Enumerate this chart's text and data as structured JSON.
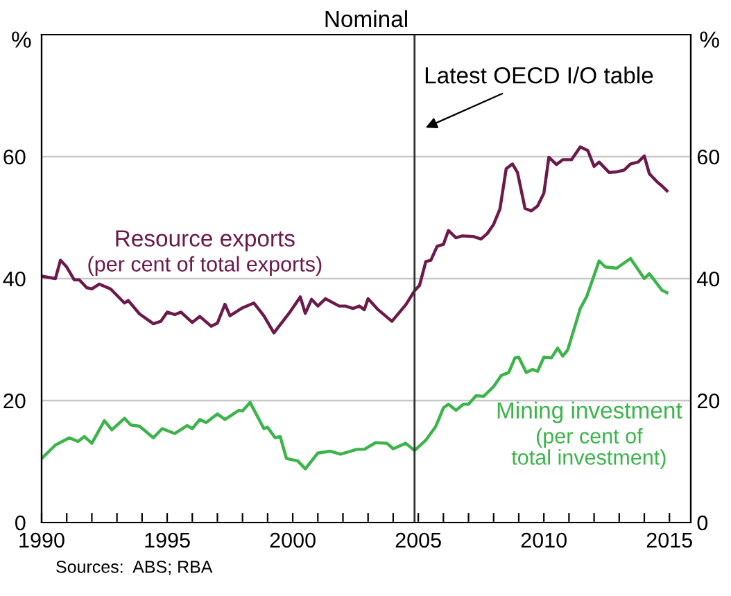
{
  "chart_data": {
    "type": "line",
    "title": "Nominal",
    "ylabel": "%",
    "y2label": "%",
    "xlim": [
      1990,
      2015.85
    ],
    "ylim": [
      0,
      80
    ],
    "y2lim": [
      0,
      80
    ],
    "xticks": [
      1990,
      {
        "value": 1991,
        "label": null
      },
      {
        "value": 1992,
        "label": null
      },
      {
        "value": 1993,
        "label": null
      },
      {
        "value": 1994,
        "label": null
      },
      1995,
      {
        "value": 1996,
        "label": null
      },
      {
        "value": 1997,
        "label": null
      },
      {
        "value": 1998,
        "label": null
      },
      {
        "value": 1999,
        "label": null
      },
      2000,
      {
        "value": 2001,
        "label": null
      },
      {
        "value": 2002,
        "label": null
      },
      {
        "value": 2003,
        "label": null
      },
      {
        "value": 2004,
        "label": null
      },
      2005,
      {
        "value": 2006,
        "label": null
      },
      {
        "value": 2007,
        "label": null
      },
      {
        "value": 2008,
        "label": null
      },
      {
        "value": 2009,
        "label": null
      },
      2010,
      {
        "value": 2011,
        "label": null
      },
      {
        "value": 2012,
        "label": null
      },
      {
        "value": 2013,
        "label": null
      },
      {
        "value": 2014,
        "label": null
      },
      2015
    ],
    "yticks": [
      0,
      20,
      40,
      60
    ],
    "y2ticks": [
      0,
      20,
      40,
      60
    ],
    "grid": "y",
    "legend": false,
    "series": [
      {
        "name": "Resource exports\n(per cent of total exports)",
        "color": "#6b1a4a",
        "x": [
          1990,
          1990.55,
          1990.75,
          1991.0,
          1991.3,
          1991.5,
          1991.8,
          1992.0,
          1992.3,
          1992.75,
          1993.3,
          1993.45,
          1993.9,
          1994.45,
          1994.75,
          1995,
          1995.3,
          1995.55,
          1996,
          1996.3,
          1996.75,
          1997,
          1997.3,
          1997.5,
          1998,
          1998.45,
          1998.85,
          1999.25,
          1999.85,
          2000.3,
          2000.5,
          2000.75,
          2001,
          2001.3,
          2001.85,
          2002.1,
          2002.4,
          2002.65,
          2002.85,
          2003.0,
          2003.4,
          2003.95,
          2004.5,
          2004.85,
          2005.05,
          2005.3,
          2005.5,
          2005.75,
          2006.0,
          2006.2,
          2006.5,
          2006.75,
          2007.2,
          2007.5,
          2007.75,
          2008.0,
          2008.25,
          2008.5,
          2008.75,
          2008.95,
          2009.25,
          2009.5,
          2009.75,
          2010.0,
          2010.2,
          2010.5,
          2010.75,
          2011.1,
          2011.45,
          2011.75,
          2012.0,
          2012.2,
          2012.6,
          2012.9,
          2013.2,
          2013.45,
          2013.75,
          2014.0,
          2014.2,
          2014.5,
          2014.7,
          2014.9
        ],
        "values": [
          40.4,
          40,
          43,
          41.9,
          39.8,
          39.8,
          38.5,
          38.3,
          39.1,
          38.3,
          36,
          36.4,
          34.2,
          32.6,
          33,
          34.5,
          34.1,
          34.5,
          32.8,
          33.8,
          32.2,
          32.7,
          35.8,
          33.9,
          35.2,
          36,
          33.9,
          31.1,
          34.3,
          37,
          34.3,
          36.6,
          35.5,
          36.7,
          35.5,
          35.5,
          35.1,
          35.5,
          34.9,
          36.7,
          34.9,
          33,
          35.7,
          38,
          38.9,
          42.8,
          43,
          45.3,
          45.6,
          47.9,
          46.7,
          47,
          46.9,
          46.5,
          47.4,
          48.9,
          51.4,
          58,
          58.8,
          57.4,
          51.5,
          51.1,
          51.9,
          54,
          59.9,
          58.7,
          59.5,
          59.5,
          61.6,
          61,
          58.4,
          59.1,
          57.4,
          57.5,
          57.8,
          58.8,
          59.1,
          60.1,
          57.2,
          55.9,
          55.2,
          54.4
        ]
      },
      {
        "name": "Mining investment\n(per cent of\ntotal investment)",
        "color": "#3cb44b",
        "x": [
          1990,
          1990.55,
          1991.1,
          1991.45,
          1991.7,
          1992.0,
          1992.5,
          1992.8,
          1993.3,
          1993.55,
          1993.9,
          1994.45,
          1994.8,
          1995.3,
          1995.8,
          1996,
          1996.3,
          1996.55,
          1997,
          1997.3,
          1997.85,
          1998,
          1998.3,
          1998.85,
          1999,
          1999.3,
          1999.5,
          1999.75,
          2000.2,
          2000.5,
          2001,
          2001.5,
          2001.9,
          2002.55,
          2002.85,
          2003.3,
          2003.75,
          2004,
          2004.5,
          2004.85,
          2005.3,
          2005.7,
          2006.0,
          2006.2,
          2006.5,
          2006.8,
          2007.0,
          2007.3,
          2007.6,
          2008.0,
          2008.3,
          2008.6,
          2008.85,
          2009.0,
          2009.3,
          2009.55,
          2009.75,
          2010.0,
          2010.3,
          2010.55,
          2010.75,
          2010.95,
          2011.45,
          2011.7,
          2012.2,
          2012.45,
          2012.9,
          2013.45,
          2014.0,
          2014.2,
          2014.7,
          2014.9
        ],
        "values": [
          10.5,
          12.7,
          13.9,
          13.3,
          14.1,
          13,
          16.7,
          15.2,
          17.1,
          16,
          15.8,
          13.9,
          15.4,
          14.6,
          15.9,
          15.4,
          16.9,
          16.4,
          17.8,
          16.9,
          18.4,
          18.3,
          19.7,
          15.4,
          15.6,
          13.9,
          14.1,
          10.5,
          10.1,
          8.8,
          11.4,
          11.7,
          11.2,
          12,
          12,
          13.1,
          13,
          12.1,
          13,
          11.8,
          13.5,
          15.8,
          18.8,
          19.4,
          18.4,
          19.4,
          19.4,
          20.8,
          20.7,
          22.3,
          24.1,
          24.6,
          27,
          27.1,
          24.6,
          25.1,
          24.8,
          27.1,
          27,
          28.6,
          27.3,
          28.3,
          35.1,
          37,
          42.9,
          41.9,
          41.7,
          43.3,
          40,
          40.8,
          38.1,
          37.7
        ]
      }
    ],
    "ref_lines": [
      {
        "axis": "x",
        "value": 2004.85,
        "label": "Latest OECD I/O table",
        "color": "#333333"
      }
    ],
    "annotations": [
      "Sources:  ABS; RBA"
    ]
  }
}
